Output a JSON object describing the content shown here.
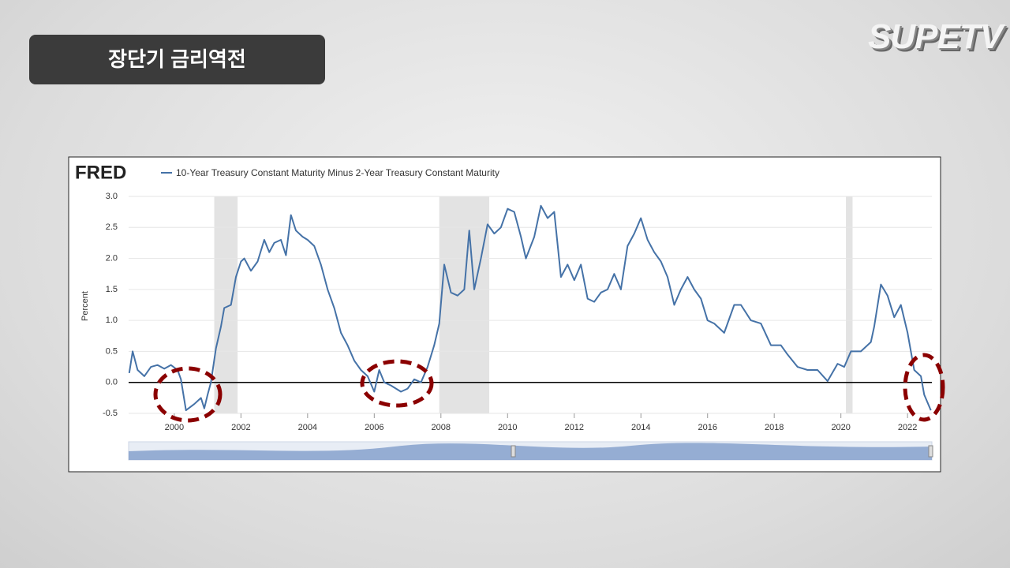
{
  "slide_title": "장단기 금리역전",
  "logo": "SUPETV",
  "chart_data": {
    "type": "line",
    "source": "FRED",
    "y_label": "Percent",
    "xlim": [
      1998.63,
      2022.73
    ],
    "ylim": [
      -0.5,
      3.0
    ],
    "xticks": [
      2000,
      2002,
      2004,
      2006,
      2008,
      2010,
      2012,
      2014,
      2016,
      2018,
      2020,
      2022
    ],
    "yticks": [
      -0.5,
      {
        "value": 0,
        "label": "0.0"
      },
      0.5,
      {
        "value": 1,
        "label": "1.0"
      },
      1.5,
      {
        "value": 2,
        "label": "2.0"
      },
      2.5,
      {
        "value": 3,
        "label": "3.0"
      }
    ],
    "grid": true,
    "shaded_periods": [
      [
        2001.2,
        2001.9
      ],
      [
        2007.95,
        2009.45
      ],
      [
        2020.15,
        2020.35
      ]
    ],
    "x": [
      1998.65,
      1998.75,
      1998.9,
      1999.1,
      1999.3,
      1999.5,
      1999.7,
      1999.9,
      2000.1,
      2000.2,
      2000.35,
      2000.6,
      2000.8,
      2000.9,
      2001.0,
      2001.1,
      2001.25,
      2001.4,
      2001.5,
      2001.7,
      2001.85,
      2002.0,
      2002.1,
      2002.3,
      2002.5,
      2002.7,
      2002.85,
      2003.0,
      2003.2,
      2003.35,
      2003.5,
      2003.65,
      2003.85,
      2004.0,
      2004.2,
      2004.4,
      2004.6,
      2004.8,
      2005.0,
      2005.2,
      2005.4,
      2005.6,
      2005.8,
      2006.0,
      2006.15,
      2006.3,
      2006.5,
      2006.8,
      2007.0,
      2007.2,
      2007.4,
      2007.6,
      2007.8,
      2007.95,
      2008.1,
      2008.3,
      2008.5,
      2008.7,
      2008.85,
      2009.0,
      2009.2,
      2009.4,
      2009.6,
      2009.8,
      2010.0,
      2010.2,
      2010.4,
      2010.55,
      2010.8,
      2011.0,
      2011.2,
      2011.4,
      2011.6,
      2011.8,
      2012.0,
      2012.2,
      2012.4,
      2012.6,
      2012.8,
      2013.0,
      2013.2,
      2013.4,
      2013.6,
      2013.8,
      2014.0,
      2014.2,
      2014.4,
      2014.6,
      2014.8,
      2015.0,
      2015.2,
      2015.4,
      2015.6,
      2015.8,
      2016.0,
      2016.2,
      2016.5,
      2016.8,
      2017.0,
      2017.3,
      2017.6,
      2017.9,
      2018.2,
      2018.4,
      2018.7,
      2019.0,
      2019.3,
      2019.6,
      2019.9,
      2020.1,
      2020.3,
      2020.6,
      2020.9,
      2021.0,
      2021.2,
      2021.4,
      2021.6,
      2021.8,
      2022.0,
      2022.2,
      2022.4,
      2022.5,
      2022.7
    ],
    "series": [
      {
        "name": "10-Year Treasury Constant Maturity Minus 2-Year Treasury Constant Maturity",
        "color": "#4572a7",
        "values": [
          0.15,
          0.5,
          0.2,
          0.1,
          0.25,
          0.28,
          0.22,
          0.28,
          0.2,
          0.05,
          -0.45,
          -0.35,
          -0.25,
          -0.42,
          -0.2,
          0.0,
          0.55,
          0.9,
          1.2,
          1.25,
          1.7,
          1.95,
          2.0,
          1.8,
          1.95,
          2.3,
          2.1,
          2.25,
          2.3,
          2.05,
          2.7,
          2.45,
          2.35,
          2.3,
          2.2,
          1.9,
          1.5,
          1.2,
          0.8,
          0.6,
          0.35,
          0.2,
          0.1,
          -0.15,
          0.2,
          0.0,
          -0.05,
          -0.15,
          -0.1,
          0.05,
          0.0,
          0.25,
          0.6,
          0.95,
          1.9,
          1.45,
          1.4,
          1.5,
          2.45,
          1.5,
          2.0,
          2.55,
          2.4,
          2.5,
          2.8,
          2.75,
          2.35,
          2.0,
          2.35,
          2.85,
          2.65,
          2.75,
          1.7,
          1.9,
          1.65,
          1.9,
          1.35,
          1.3,
          1.45,
          1.5,
          1.75,
          1.5,
          2.2,
          2.4,
          2.65,
          2.3,
          2.1,
          1.95,
          1.7,
          1.25,
          1.5,
          1.7,
          1.5,
          1.35,
          1.0,
          0.95,
          0.8,
          1.25,
          1.25,
          1.0,
          0.95,
          0.6,
          0.6,
          0.45,
          0.25,
          0.2,
          0.2,
          0.02,
          0.3,
          0.25,
          0.5,
          0.5,
          0.65,
          0.9,
          1.58,
          1.4,
          1.05,
          1.25,
          0.8,
          0.2,
          0.1,
          -0.2,
          -0.45
        ]
      }
    ]
  }
}
